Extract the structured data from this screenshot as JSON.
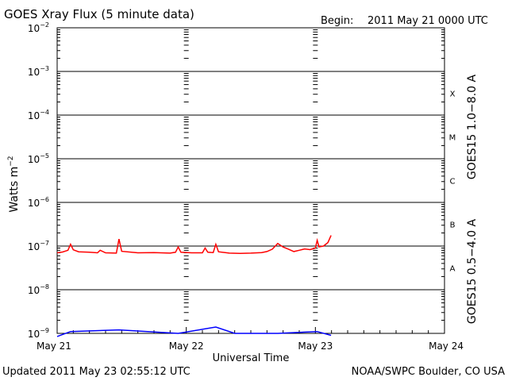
{
  "header": {
    "title": "GOES Xray Flux (5 minute data)",
    "begin_label": "Begin:",
    "begin_value": "2011 May 21 0000 UTC"
  },
  "footer": {
    "updated": "Updated 2011 May 23 02:55:12 UTC",
    "credit": "NOAA/SWPC Boulder, CO USA"
  },
  "colors": {
    "long_channel": "#ff0000",
    "short_channel": "#0000ff",
    "axis": "#000000"
  },
  "chart_data": {
    "type": "line",
    "title": "GOES Xray Flux (5 minute data)",
    "xlabel": "Universal Time",
    "ylabel": "Watts m",
    "ylabel_superscript": "−2",
    "y_scale": "log",
    "ylim": [
      1e-09,
      0.01
    ],
    "xlim": [
      "2011-05-21T00:00",
      "2011-05-24T00:00"
    ],
    "x_tick_labels": [
      "May 21",
      "May 22",
      "May 23",
      "May 24"
    ],
    "y_tick_labels": [
      {
        "base": "10",
        "exp": "−9",
        "value": 1e-09
      },
      {
        "base": "10",
        "exp": "−8",
        "value": 1e-08
      },
      {
        "base": "10",
        "exp": "−7",
        "value": 1e-07
      },
      {
        "base": "10",
        "exp": "−6",
        "value": 1e-06
      },
      {
        "base": "10",
        "exp": "−5",
        "value": 1e-05
      },
      {
        "base": "10",
        "exp": "−4",
        "value": 0.0001
      },
      {
        "base": "10",
        "exp": "−3",
        "value": 0.001
      },
      {
        "base": "10",
        "exp": "−2",
        "value": 0.01
      }
    ],
    "grid": "horizontal lines at each decade",
    "flare_classes": [
      {
        "label": "A",
        "low": 1e-08,
        "high": 1e-07
      },
      {
        "label": "B",
        "low": 1e-07,
        "high": 1e-06
      },
      {
        "label": "C",
        "low": 1e-06,
        "high": 1e-05
      },
      {
        "label": "M",
        "low": 1e-05,
        "high": 0.0001
      },
      {
        "label": "X",
        "low": 0.0001,
        "high": 0.001
      }
    ],
    "series": [
      {
        "name": "GOES15 1.0−8.0 A",
        "color": "#ff0000",
        "points": [
          [
            "2011-05-21T00:00",
            7e-08
          ],
          [
            "2011-05-21T01:00",
            7.3e-08
          ],
          [
            "2011-05-21T02:00",
            8e-08
          ],
          [
            "2011-05-21T02:30",
            1.1e-07
          ],
          [
            "2011-05-21T03:00",
            8.2e-08
          ],
          [
            "2011-05-21T04:00",
            7.4e-08
          ],
          [
            "2011-05-21T06:00",
            7.2e-08
          ],
          [
            "2011-05-21T07:30",
            7e-08
          ],
          [
            "2011-05-21T08:00",
            8e-08
          ],
          [
            "2011-05-21T09:00",
            7e-08
          ],
          [
            "2011-05-21T11:00",
            6.9e-08
          ],
          [
            "2011-05-21T11:30",
            1.45e-07
          ],
          [
            "2011-05-21T12:00",
            7.6e-08
          ],
          [
            "2011-05-21T15:00",
            7e-08
          ],
          [
            "2011-05-21T18:00",
            7.1e-08
          ],
          [
            "2011-05-21T21:00",
            6.9e-08
          ],
          [
            "2011-05-21T22:00",
            7.2e-08
          ],
          [
            "2011-05-21T22:30",
            9.5e-08
          ],
          [
            "2011-05-21T23:00",
            7.2e-08
          ],
          [
            "2011-05-22T01:00",
            7e-08
          ],
          [
            "2011-05-22T03:00",
            7e-08
          ],
          [
            "2011-05-22T03:30",
            9e-08
          ],
          [
            "2011-05-22T04:00",
            7.2e-08
          ],
          [
            "2011-05-22T05:00",
            7.1e-08
          ],
          [
            "2011-05-22T05:30",
            1.1e-07
          ],
          [
            "2011-05-22T06:00",
            7.4e-08
          ],
          [
            "2011-05-22T08:00",
            6.9e-08
          ],
          [
            "2011-05-22T10:00",
            6.8e-08
          ],
          [
            "2011-05-22T12:00",
            6.9e-08
          ],
          [
            "2011-05-22T14:00",
            7.1e-08
          ],
          [
            "2011-05-22T15:00",
            7.5e-08
          ],
          [
            "2011-05-22T16:00",
            8.5e-08
          ],
          [
            "2011-05-22T17:00",
            1.15e-07
          ],
          [
            "2011-05-22T18:00",
            9.5e-08
          ],
          [
            "2011-05-22T19:00",
            8.5e-08
          ],
          [
            "2011-05-22T20:00",
            7.5e-08
          ],
          [
            "2011-05-22T21:00",
            8e-08
          ],
          [
            "2011-05-22T22:00",
            8.6e-08
          ],
          [
            "2011-05-22T23:00",
            8.3e-08
          ],
          [
            "2011-05-23T00:00",
            9e-08
          ],
          [
            "2011-05-23T00:20",
            1.35e-07
          ],
          [
            "2011-05-23T00:40",
            9.6e-08
          ],
          [
            "2011-05-23T01:30",
            1e-07
          ],
          [
            "2011-05-23T02:20",
            1.2e-07
          ],
          [
            "2011-05-23T02:55",
            1.75e-07
          ]
        ]
      },
      {
        "name": "GOES15 0.5−4.0 A",
        "color": "#0000ff",
        "points": [
          [
            "2011-05-21T00:00",
            8.5e-10
          ],
          [
            "2011-05-21T02:30",
            1.1e-09
          ],
          [
            "2011-05-21T11:30",
            1.2e-09
          ],
          [
            "2011-05-21T22:30",
            1e-09
          ],
          [
            "2011-05-22T05:30",
            1.4e-09
          ],
          [
            "2011-05-22T09:00",
            1e-09
          ],
          [
            "2011-05-22T17:00",
            1e-09
          ],
          [
            "2011-05-23T00:20",
            1.1e-09
          ],
          [
            "2011-05-23T02:55",
            9e-10
          ]
        ]
      }
    ]
  }
}
